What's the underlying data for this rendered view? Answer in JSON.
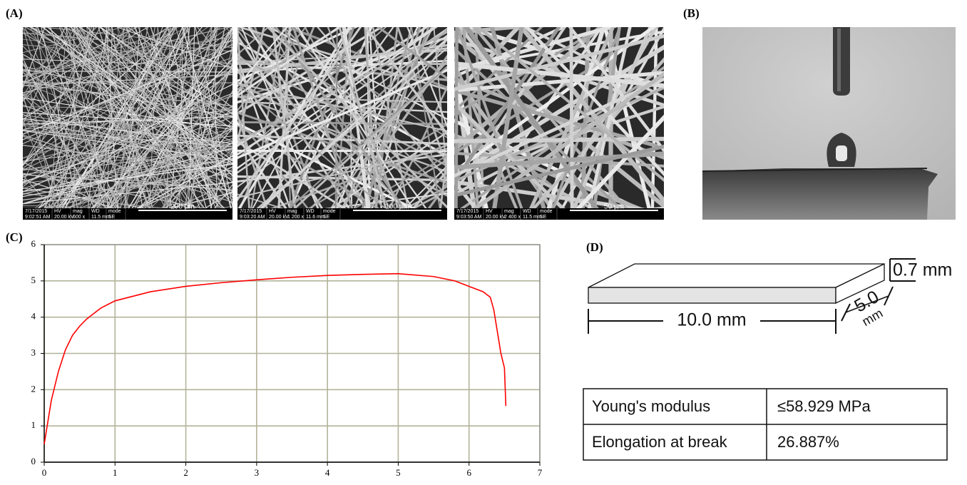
{
  "panel_labels": [
    "(A)",
    "(B)",
    "(C)",
    "(D)"
  ],
  "sem_headers": [
    "HV",
    "mag",
    "WD",
    "mode"
  ],
  "sem_images": [
    {
      "date": "7/17/2015",
      "time": "9:02:51 AM",
      "hv": "20.00 kV",
      "mag": "600 x",
      "wd": "11.5 mm",
      "mode": "SE",
      "scale": "200 µm"
    },
    {
      "date": "7/17/2015",
      "time": "9:03:20 AM",
      "hv": "20.00 kV",
      "mag": "1 200 x",
      "wd": "11.6 mm",
      "mode": "SE",
      "scale": "100 µm"
    },
    {
      "date": "7/17/2015",
      "time": "9:03:50 AM",
      "hv": "20.00 kV",
      "mag": "2 400 x",
      "wd": "11.5 mm",
      "mode": "SE",
      "scale": "50 µm"
    }
  ],
  "chart_data": {
    "type": "line",
    "x": [
      0,
      0.05,
      0.1,
      0.2,
      0.3,
      0.4,
      0.5,
      0.6,
      0.8,
      1,
      1.5,
      2,
      2.5,
      3,
      3.5,
      4,
      4.5,
      5,
      5.5,
      5.8,
      6,
      6.2,
      6.3,
      6.35,
      6.4,
      6.45,
      6.5,
      6.52
    ],
    "series": [
      {
        "color": "#ff0000",
        "values": [
          0.5,
          1.1,
          1.7,
          2.5,
          3.1,
          3.5,
          3.75,
          3.95,
          4.25,
          4.45,
          4.7,
          4.85,
          4.95,
          5.03,
          5.1,
          5.15,
          5.18,
          5.2,
          5.12,
          5.0,
          4.85,
          4.7,
          4.55,
          4.2,
          3.6,
          3.0,
          2.6,
          1.55
        ]
      }
    ],
    "xlim": [
      0,
      7
    ],
    "ylim": [
      0,
      6
    ],
    "xticks": [
      0,
      1,
      2,
      3,
      4,
      5,
      6,
      7
    ],
    "yticks": [
      0,
      1,
      2,
      3,
      4,
      5,
      6
    ],
    "grid": true
  },
  "specimen": {
    "thickness": "0.7 mm",
    "width_value": "5.0",
    "width_unit": "mm",
    "length": "10.0 mm"
  },
  "table": {
    "rows": [
      [
        "Young's modulus",
        "≤58.929 MPa"
      ],
      [
        "Elongation at break",
        "26.887%"
      ]
    ]
  }
}
